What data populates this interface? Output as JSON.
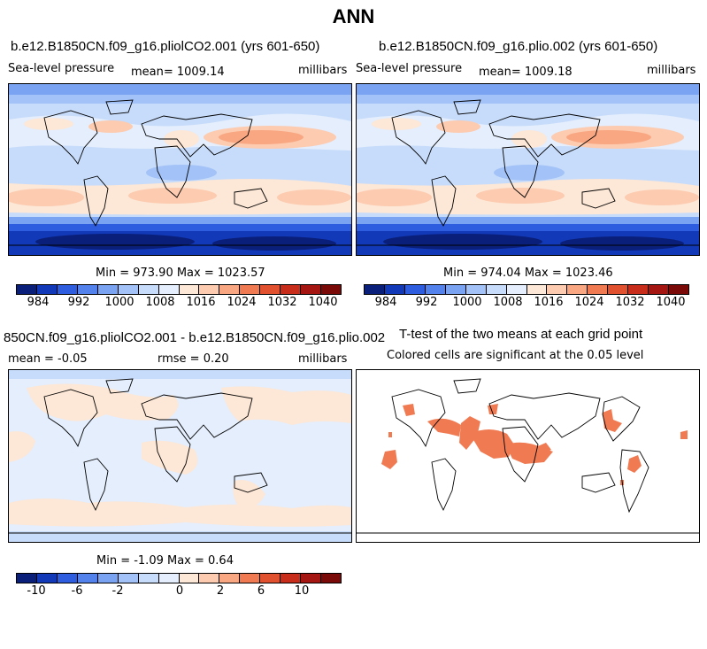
{
  "figure_title": "ANN",
  "panels": {
    "top_left": {
      "title": "b.e12.B1850CN.f09_g16.pliolCO2.001 (yrs 601-650)",
      "variable": "Sea-level pressure",
      "mean_label": "mean= 1009.14",
      "units": "millibars",
      "minmax": "Min = 973.90 Max = 1023.57"
    },
    "top_right": {
      "title": "b.e12.B1850CN.f09_g16.plio.002 (yrs 601-650)",
      "variable": "Sea-level pressure",
      "mean_label": "mean= 1009.18",
      "units": "millibars",
      "minmax": "Min = 974.04 Max = 1023.46"
    },
    "bottom_left": {
      "title": "850CN.f09_g16.pliolCO2.001 - b.e12.B1850CN.f09_g16.plio.002",
      "mean_label": "mean =  -0.05",
      "rmse_label": "rmse =   0.20",
      "units": "millibars",
      "minmax": "Min =  -1.09 Max =   0.64"
    },
    "bottom_right": {
      "title": "T-test of the two means at each grid point",
      "subtitle": "Colored cells are significant at the 0.05 level"
    }
  },
  "colorbar_slp": {
    "ticks": [
      "984",
      "992",
      "1000",
      "1008",
      "1016",
      "1024",
      "1032",
      "1040"
    ],
    "colors": [
      "#0a1f7a",
      "#1239b8",
      "#2f5de0",
      "#5382ec",
      "#7aa3f2",
      "#a3c2f7",
      "#c7dcfa",
      "#e4eefd",
      "#fde7d6",
      "#fccbb0",
      "#f8a782",
      "#f07b52",
      "#e1502f",
      "#c82d1c",
      "#a51511",
      "#7a0a08"
    ]
  },
  "colorbar_diff": {
    "ticks": [
      "-10",
      "-6",
      "-2",
      "0",
      "2",
      "6",
      "10"
    ],
    "colors": [
      "#0a1f7a",
      "#1239b8",
      "#2f5de0",
      "#5382ec",
      "#7aa3f2",
      "#a3c2f7",
      "#c7dcfa",
      "#e4eefd",
      "#fde7d6",
      "#fccbb0",
      "#f8a782",
      "#f07b52",
      "#e1502f",
      "#c82d1c",
      "#a51511",
      "#7a0a08"
    ]
  },
  "significance_color": "#f07b52"
}
